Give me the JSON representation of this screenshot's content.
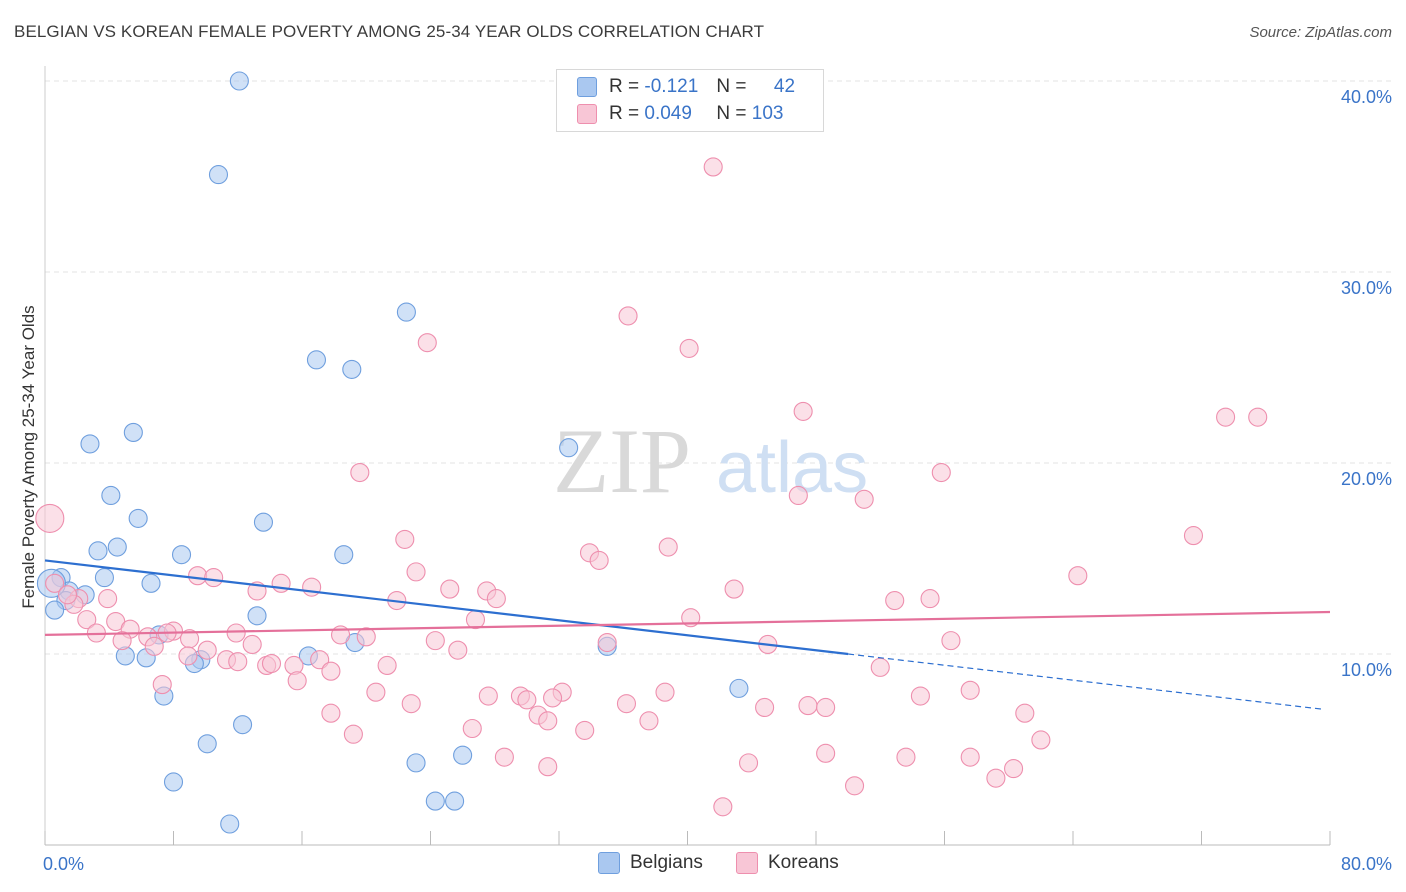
{
  "title": "BELGIAN VS KOREAN FEMALE POVERTY AMONG 25-34 YEAR OLDS CORRELATION CHART",
  "source": "Source: ZipAtlas.com",
  "watermark": {
    "zip": "ZIP",
    "atlas": "atlas"
  },
  "legend_top": [
    {
      "r_label": "R =",
      "r_value": "-0.121",
      "n_label": "N =",
      "n_value": "42",
      "color": "#aac8f0",
      "border": "#6f9fde"
    },
    {
      "r_label": "R =",
      "r_value": "0.049",
      "n_label": "N =",
      "n_value": "103",
      "color": "#f8c6d6",
      "border": "#ee8fae"
    }
  ],
  "chart_data": {
    "type": "scatter",
    "title": "BELGIAN VS KOREAN FEMALE POVERTY AMONG 25-34 YEAR OLDS CORRELATION CHART",
    "xlabel": "",
    "ylabel": "Female Poverty Among 25-34 Year Olds",
    "xlim": [
      0,
      80
    ],
    "ylim": [
      0,
      42
    ],
    "x_tick_labels": [
      "0.0%",
      "80.0%"
    ],
    "y_ticks": [
      10,
      20,
      30,
      40
    ],
    "y_tick_labels": [
      "10.0%",
      "20.0%",
      "30.0%",
      "40.0%"
    ],
    "grid": true,
    "legend_position": "top-center",
    "series": [
      {
        "name": "Belgians",
        "color": "#6f9fde",
        "fill": "#aac8f0",
        "trend": {
          "x": [
            0,
            50
          ],
          "y": [
            14.9,
            10.0
          ],
          "dashed_to": [
            80,
            7.1
          ],
          "color": "#2d6fd0"
        },
        "points": [
          [
            12.1,
            40.0
          ],
          [
            10.8,
            35.1
          ],
          [
            22.5,
            27.9
          ],
          [
            16.9,
            25.4
          ],
          [
            19.1,
            24.9
          ],
          [
            2.8,
            21.0
          ],
          [
            5.5,
            21.6
          ],
          [
            32.6,
            20.8
          ],
          [
            4.1,
            18.3
          ],
          [
            5.8,
            17.1
          ],
          [
            13.6,
            16.9
          ],
          [
            3.3,
            15.4
          ],
          [
            4.5,
            15.6
          ],
          [
            8.5,
            15.2
          ],
          [
            18.6,
            15.2
          ],
          [
            1.0,
            14.0
          ],
          [
            3.7,
            14.0
          ],
          [
            6.6,
            13.7
          ],
          [
            1.5,
            13.3
          ],
          [
            2.5,
            13.1
          ],
          [
            1.3,
            12.8
          ],
          [
            0.6,
            12.3
          ],
          [
            13.2,
            12.0
          ],
          [
            7.1,
            11.0
          ],
          [
            19.3,
            10.6
          ],
          [
            35.0,
            10.4
          ],
          [
            5.0,
            9.9
          ],
          [
            6.3,
            9.8
          ],
          [
            9.7,
            9.7
          ],
          [
            9.3,
            9.5
          ],
          [
            16.4,
            9.9
          ],
          [
            7.4,
            7.8
          ],
          [
            43.2,
            8.2
          ],
          [
            12.3,
            6.3
          ],
          [
            10.1,
            5.3
          ],
          [
            23.1,
            4.3
          ],
          [
            26.0,
            4.7
          ],
          [
            8.0,
            3.3
          ],
          [
            24.3,
            2.3
          ],
          [
            25.5,
            2.3
          ],
          [
            11.5,
            1.1
          ],
          [
            0.4,
            13.7
          ]
        ]
      },
      {
        "name": "Koreans",
        "color": "#ee8fae",
        "fill": "#f8c6d6",
        "trend": {
          "x": [
            0,
            80
          ],
          "y": [
            11.0,
            12.2
          ],
          "color": "#e4709a"
        },
        "points": [
          [
            0.3,
            17.1
          ],
          [
            41.6,
            35.5
          ],
          [
            36.3,
            27.7
          ],
          [
            40.1,
            26.0
          ],
          [
            23.8,
            26.3
          ],
          [
            47.2,
            22.7
          ],
          [
            73.5,
            22.4
          ],
          [
            75.5,
            22.4
          ],
          [
            19.6,
            19.5
          ],
          [
            55.8,
            19.5
          ],
          [
            46.9,
            18.3
          ],
          [
            51.0,
            18.1
          ],
          [
            71.5,
            16.2
          ],
          [
            22.4,
            16.0
          ],
          [
            33.9,
            15.3
          ],
          [
            38.8,
            15.6
          ],
          [
            34.5,
            14.9
          ],
          [
            23.1,
            14.3
          ],
          [
            64.3,
            14.1
          ],
          [
            9.5,
            14.1
          ],
          [
            10.5,
            14.0
          ],
          [
            14.7,
            13.7
          ],
          [
            16.6,
            13.5
          ],
          [
            13.2,
            13.3
          ],
          [
            25.2,
            13.4
          ],
          [
            27.5,
            13.3
          ],
          [
            28.1,
            12.9
          ],
          [
            42.9,
            13.4
          ],
          [
            52.9,
            12.8
          ],
          [
            55.1,
            12.9
          ],
          [
            2.1,
            12.9
          ],
          [
            3.9,
            12.9
          ],
          [
            1.8,
            12.6
          ],
          [
            21.9,
            12.8
          ],
          [
            26.8,
            11.8
          ],
          [
            40.2,
            11.9
          ],
          [
            2.6,
            11.8
          ],
          [
            4.4,
            11.7
          ],
          [
            5.3,
            11.3
          ],
          [
            8.0,
            11.2
          ],
          [
            3.2,
            11.1
          ],
          [
            7.6,
            11.1
          ],
          [
            11.9,
            11.1
          ],
          [
            18.4,
            11.0
          ],
          [
            20.0,
            10.9
          ],
          [
            6.4,
            10.9
          ],
          [
            9.0,
            10.8
          ],
          [
            4.8,
            10.7
          ],
          [
            12.9,
            10.5
          ],
          [
            6.8,
            10.4
          ],
          [
            24.3,
            10.7
          ],
          [
            35.0,
            10.6
          ],
          [
            56.4,
            10.7
          ],
          [
            10.1,
            10.2
          ],
          [
            25.7,
            10.2
          ],
          [
            8.9,
            9.9
          ],
          [
            11.3,
            9.7
          ],
          [
            12.0,
            9.6
          ],
          [
            13.8,
            9.4
          ],
          [
            14.1,
            9.5
          ],
          [
            15.5,
            9.4
          ],
          [
            17.1,
            9.7
          ],
          [
            17.8,
            9.1
          ],
          [
            21.3,
            9.4
          ],
          [
            52.0,
            9.3
          ],
          [
            7.3,
            8.4
          ],
          [
            15.7,
            8.6
          ],
          [
            20.6,
            8.0
          ],
          [
            27.6,
            7.8
          ],
          [
            29.6,
            7.8
          ],
          [
            30.0,
            7.6
          ],
          [
            32.2,
            8.0
          ],
          [
            31.6,
            7.7
          ],
          [
            38.6,
            8.0
          ],
          [
            57.6,
            8.1
          ],
          [
            54.5,
            7.8
          ],
          [
            22.8,
            7.4
          ],
          [
            36.2,
            7.4
          ],
          [
            47.5,
            7.3
          ],
          [
            48.6,
            7.2
          ],
          [
            61.0,
            6.9
          ],
          [
            17.8,
            6.9
          ],
          [
            30.7,
            6.8
          ],
          [
            31.3,
            6.5
          ],
          [
            37.6,
            6.5
          ],
          [
            26.6,
            6.1
          ],
          [
            19.2,
            5.8
          ],
          [
            28.6,
            4.6
          ],
          [
            31.3,
            4.1
          ],
          [
            43.8,
            4.3
          ],
          [
            48.6,
            4.8
          ],
          [
            53.6,
            4.6
          ],
          [
            57.6,
            4.6
          ],
          [
            60.3,
            4.0
          ],
          [
            59.2,
            3.5
          ],
          [
            50.4,
            3.1
          ],
          [
            42.2,
            2.0
          ],
          [
            0.6,
            13.7
          ],
          [
            1.4,
            13.1
          ],
          [
            44.8,
            7.2
          ],
          [
            62.0,
            5.5
          ],
          [
            33.6,
            6.0
          ],
          [
            45.0,
            10.5
          ]
        ]
      }
    ]
  }
}
